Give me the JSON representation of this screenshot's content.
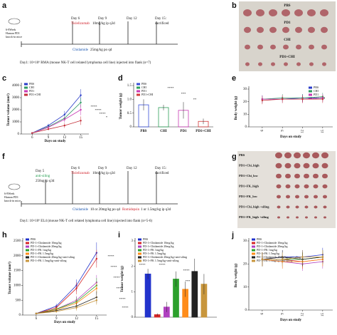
{
  "panels": {
    "a": {
      "letter": "a",
      "mouse": "6-8Week",
      "mouse2": "Human PD1",
      "mouse3": "knock-in mice",
      "d6": "Day 6",
      "drug": "Tislelizumab",
      "dose": "10mg/kg ip q3d",
      "d9": "Day 9",
      "d12": "Day 12",
      "d15": "Day 15:",
      "sac": "sacrificed",
      "chi": "Chidamide",
      "chidose": "25mg/kg po qd",
      "day1": "Day1: 10×10⁶ RMA (mouse NK-T cell related lymphoma cell line) injected into flank (n=7)"
    },
    "b": {
      "letter": "b",
      "labels": [
        "PBS",
        "PD1",
        "CHI",
        "PD1+CHI"
      ]
    },
    "f": {
      "letter": "f",
      "mouse": "6-8Week",
      "mouse2": "Human PD1",
      "mouse3": "knock-in mice",
      "d5": "Day 5",
      "anti": "anti-siling",
      "antidose": "250ug ip q3d",
      "d6": "Day 6",
      "drug": "Tislelizumab",
      "dose": "10mg/kg ip q3d",
      "d9": "Day 9",
      "d12": "Day 12",
      "d15": "Day 15:",
      "sac": "sacrificed",
      "chi": "Chidamide",
      "chidose": "10 or 20mg/kg po qd",
      "romi": "Romidepsin",
      "romidose": "1 or 1.5mg/kg ip q3d",
      "day1": "Day1: 10×10⁶ EL4 (mouse NK-T cell related lymphoma cell line) injected into flank (n=5-6)"
    },
    "g": {
      "letter": "g",
      "labels": [
        "PBS",
        "PD1+Chi_high",
        "PD1+Chi_low",
        "PD1+FK_high",
        "PD1+FK_low",
        "PD1+Chi_high +siling",
        "PD1+FK_high +siling"
      ]
    }
  },
  "chart_data": [
    {
      "type": "line",
      "label": "c",
      "ylabel": "Tumor volume (mm³)",
      "xlabel": "Days on study",
      "x": [
        6,
        9,
        12,
        15
      ],
      "xlim": [
        4,
        16.5
      ],
      "xticks": [
        6,
        9,
        12,
        15
      ],
      "ylim": [
        0,
        4000
      ],
      "yticks": [
        0,
        1000,
        2000,
        3000,
        4000
      ],
      "legend": "upper left",
      "series": [
        {
          "name": "PBS",
          "color": "#2a3cc9",
          "values": [
            80,
            700,
            1600,
            3200
          ],
          "errors": [
            20,
            150,
            300,
            500
          ]
        },
        {
          "name": "CHI",
          "color": "#2f9a63",
          "values": [
            80,
            600,
            1300,
            2600
          ],
          "errors": [
            20,
            120,
            250,
            400
          ]
        },
        {
          "name": "PD1",
          "color": "#c93ab5",
          "values": [
            80,
            550,
            1200,
            2000
          ],
          "errors": [
            20,
            120,
            250,
            450
          ]
        },
        {
          "name": "PD1+CHI",
          "color": "#c4303a",
          "values": [
            80,
            400,
            700,
            1100
          ],
          "errors": [
            20,
            80,
            200,
            350
          ]
        }
      ],
      "annotations": [
        "****",
        "****",
        "****",
        "*"
      ]
    },
    {
      "type": "bar",
      "label": "d",
      "ylabel": "Tumor weight (g)",
      "categories": [
        "PBS",
        "CHI",
        "PD1",
        "PD1+CHI"
      ],
      "values": [
        0.8,
        0.7,
        0.6,
        0.2
      ],
      "errors": [
        0.2,
        0.1,
        0.3,
        0.1
      ],
      "colors": [
        "#3a4fd8",
        "#2fa05a",
        "#c93ab5",
        "#d23a3a"
      ],
      "ylim": [
        0,
        1.5
      ],
      "yticks": [
        0,
        0.5,
        {
          "value": 1,
          "label": "1.0"
        },
        1.5
      ],
      "legend": "upper left",
      "annotations": [
        "****",
        "***",
        "**"
      ]
    },
    {
      "type": "line",
      "label": "e",
      "ylabel": "Body weight (g)",
      "xlabel": "Days on study",
      "x": [
        6,
        9,
        12,
        15
      ],
      "xlim": [
        4,
        16.5
      ],
      "xticks": [
        6,
        9,
        12,
        15
      ],
      "ylim": [
        0,
        30
      ],
      "yticks": [
        0,
        10,
        20,
        30
      ],
      "legend": "upper right",
      "series": [
        {
          "name": "PBS",
          "color": "#2a3cc9",
          "values": [
            22,
            22,
            23,
            23
          ],
          "errors": [
            3,
            3,
            3,
            3
          ]
        },
        {
          "name": "CHI",
          "color": "#2f9a63",
          "values": [
            22,
            23,
            23,
            24
          ],
          "errors": [
            3,
            3,
            3,
            3
          ]
        },
        {
          "name": "PD1",
          "color": "#c93ab5",
          "values": [
            22,
            22,
            22,
            23
          ],
          "errors": [
            3,
            3,
            3,
            3
          ]
        },
        {
          "name": "PD1+CHI",
          "color": "#c4303a",
          "values": [
            21,
            22,
            22,
            22
          ],
          "errors": [
            3,
            3,
            3,
            3
          ]
        }
      ]
    },
    {
      "type": "line",
      "label": "h",
      "ylabel": "Tumor volume (mm³)",
      "xlabel": "Days on study",
      "x": [
        6,
        9,
        12,
        15
      ],
      "xlim": [
        4,
        16.5
      ],
      "xticks": [
        6,
        9,
        12,
        15
      ],
      "ylim": [
        0,
        2500
      ],
      "yticks": [
        0,
        500,
        1000,
        1500,
        2000,
        2500
      ],
      "legend": "upper left",
      "series": [
        {
          "name": "PBS",
          "color": "#2233cc",
          "values": [
            50,
            300,
            1000,
            2100
          ],
          "errors": [
            10,
            80,
            200,
            350
          ]
        },
        {
          "name": "PD-1+Chidamide 10mg/kg",
          "color": "#d62728",
          "values": [
            50,
            250,
            900,
            1900
          ],
          "errors": [
            10,
            70,
            200,
            300
          ]
        },
        {
          "name": "PD-1+Chidamide 20mg/kg",
          "color": "#b040c0",
          "values": [
            50,
            200,
            500,
            1100
          ],
          "errors": [
            10,
            60,
            150,
            250
          ]
        },
        {
          "name": "PD-1+FK 1mg/kg",
          "color": "#2ca02c",
          "values": [
            50,
            200,
            450,
            1000
          ],
          "errors": [
            10,
            60,
            150,
            250
          ]
        },
        {
          "name": "PD-1+FK 1.5mg/kg",
          "color": "#ff8c1a",
          "values": [
            50,
            180,
            400,
            900
          ],
          "errors": [
            10,
            50,
            120,
            200
          ]
        },
        {
          "name": "PD-1+Chidamide 20mg/kg+anti-siling",
          "color": "#222222",
          "values": [
            50,
            150,
            300,
            600
          ],
          "errors": [
            10,
            40,
            100,
            200
          ]
        },
        {
          "name": "PD-1+FK 1.5mg/kg+anti-siling",
          "color": "#c8963c",
          "values": [
            50,
            120,
            250,
            500
          ],
          "errors": [
            10,
            40,
            100,
            150
          ]
        }
      ],
      "annotations": [
        "****",
        "****",
        "****",
        "****",
        "****",
        "****"
      ]
    },
    {
      "type": "bar",
      "label": "i",
      "ylabel": "Tumor weight (g)",
      "categories": [
        null
      ],
      "ylim": [
        0,
        3
      ],
      "yticks": [
        0,
        1,
        2,
        3
      ],
      "legend": "upper left",
      "series": [
        {
          "name": "PBS",
          "color": "#2233cc",
          "values": [
            1.7
          ],
          "errors": [
            0.2
          ]
        },
        {
          "name": "PD-1+Chidamide 10mg/kg",
          "color": "#d62728",
          "values": [
            0.1
          ],
          "errors": [
            0.05
          ]
        },
        {
          "name": "PD-1+Chidamide 20mg/kg",
          "color": "#b040c0",
          "values": [
            0.4
          ],
          "errors": [
            0.2
          ]
        },
        {
          "name": "PD-1+FK 1mg/kg",
          "color": "#2ca02c",
          "values": [
            1.5
          ],
          "errors": [
            0.3
          ]
        },
        {
          "name": "PD-1+FK 1.5mg/kg",
          "color": "#ff8c1a",
          "values": [
            1.1
          ],
          "errors": [
            0.3
          ]
        },
        {
          "name": "PD-1+Chidamide 20mg/kg+anti-siling",
          "color": "#222222",
          "values": [
            1.8
          ],
          "errors": [
            0.5
          ]
        },
        {
          "name": "PD-1+FK 1.5mg/kg+anti-siling",
          "color": "#c8963c",
          "values": [
            1.3
          ],
          "errors": [
            0.4
          ]
        }
      ],
      "annotations": [
        "****",
        "****",
        "****",
        "***",
        "*"
      ]
    },
    {
      "type": "line",
      "label": "j",
      "ylabel": "Body weight (g)",
      "xlabel": "Days on study",
      "x": [
        6,
        9,
        12,
        15
      ],
      "xlim": [
        4,
        16.5
      ],
      "xticks": [
        6,
        9,
        12,
        15
      ],
      "ylim": [
        0,
        30
      ],
      "yticks": [
        0,
        10,
        20,
        30
      ],
      "legend": "upper left",
      "series": [
        {
          "name": "PBS",
          "color": "#2233cc",
          "values": [
            22,
            23,
            23,
            24
          ],
          "errors": [
            3,
            3,
            3,
            3
          ]
        },
        {
          "name": "PD-1+Chidamide 10mg/kg",
          "color": "#d62728",
          "values": [
            22,
            22,
            21,
            22
          ],
          "errors": [
            3,
            3,
            3,
            3
          ]
        },
        {
          "name": "PD-1+Chidamide 20mg/kg",
          "color": "#b040c0",
          "values": [
            22,
            21,
            20,
            21
          ],
          "errors": [
            3,
            3,
            3,
            3
          ]
        },
        {
          "name": "PD-1+FK 1mg/kg",
          "color": "#2ca02c",
          "values": [
            22,
            22,
            22,
            23
          ],
          "errors": [
            3,
            3,
            3,
            3
          ]
        },
        {
          "name": "PD-1+FK 1.5mg/kg",
          "color": "#ff8c1a",
          "values": [
            22,
            21,
            21,
            22
          ],
          "errors": [
            3,
            3,
            3,
            3
          ]
        },
        {
          "name": "PD-1+Chidamide 20mg/kg+anti-siling",
          "color": "#222222",
          "values": [
            22,
            23,
            22,
            23
          ],
          "errors": [
            3,
            3,
            3,
            3
          ]
        },
        {
          "name": "PD-1+FK 1.5mg/kg+anti-siling",
          "color": "#c8963c",
          "values": [
            22,
            22,
            23,
            23
          ],
          "errors": [
            3,
            3,
            3,
            3
          ]
        }
      ]
    }
  ]
}
